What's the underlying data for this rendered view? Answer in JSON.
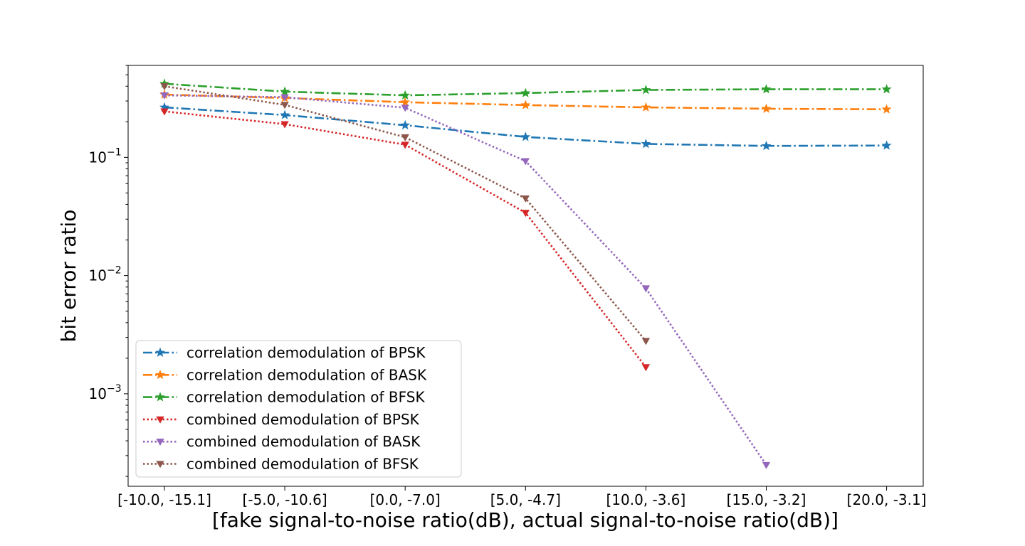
{
  "chart_data": {
    "type": "line",
    "title": "",
    "xlabel": "[fake signal-to-noise ratio(dB), actual signal-to-noise ratio(dB)]",
    "ylabel": "bit error ratio",
    "categories": [
      "[-10.0, -15.1]",
      "[-5.0, -10.6]",
      "[0.0, -7.0]",
      "[5.0, -4.7]",
      "[10.0, -3.6]",
      "[15.0, -3.2]",
      "[20.0, -3.1]"
    ],
    "yscale": "log",
    "ylim": [
      0.000165,
      0.6
    ],
    "yticks": [
      0.001,
      0.01,
      0.1
    ],
    "ytick_labels": [
      {
        "base": "10",
        "exp": "−3"
      },
      {
        "base": "10",
        "exp": "−2"
      },
      {
        "base": "10",
        "exp": "−1"
      }
    ],
    "grid": false,
    "legend_position": "lower-left",
    "series": [
      {
        "name": "correlation demodulation of BPSK",
        "color": "#1f77b4",
        "linestyle": "dashdot",
        "marker": "star",
        "values": [
          0.265,
          0.228,
          0.187,
          0.149,
          0.13,
          0.125,
          0.126
        ]
      },
      {
        "name": "correlation demodulation of BASK",
        "color": "#ff7f0e",
        "linestyle": "dashdot",
        "marker": "star",
        "values": [
          0.34,
          0.318,
          0.293,
          0.277,
          0.265,
          0.258,
          0.255
        ]
      },
      {
        "name": "correlation demodulation of BFSK",
        "color": "#2ca02c",
        "linestyle": "dashdot",
        "marker": "star",
        "values": [
          0.42,
          0.36,
          0.335,
          0.35,
          0.372,
          0.377,
          0.377
        ]
      },
      {
        "name": "combined demodulation of BPSK",
        "color": "#d62728",
        "linestyle": "dotted",
        "marker": "triangle-down",
        "values": [
          0.245,
          0.191,
          0.128,
          0.034,
          0.00168,
          null,
          null
        ]
      },
      {
        "name": "combined demodulation of BASK",
        "color": "#9467bd",
        "linestyle": "dotted",
        "marker": "triangle-down",
        "values": [
          0.335,
          0.323,
          0.263,
          0.093,
          0.0078,
          0.00025,
          null
        ]
      },
      {
        "name": "combined demodulation of BFSK",
        "color": "#8c564b",
        "linestyle": "dotted",
        "marker": "triangle-down",
        "values": [
          0.4,
          0.278,
          0.148,
          0.045,
          0.0028,
          null,
          null
        ]
      }
    ]
  }
}
